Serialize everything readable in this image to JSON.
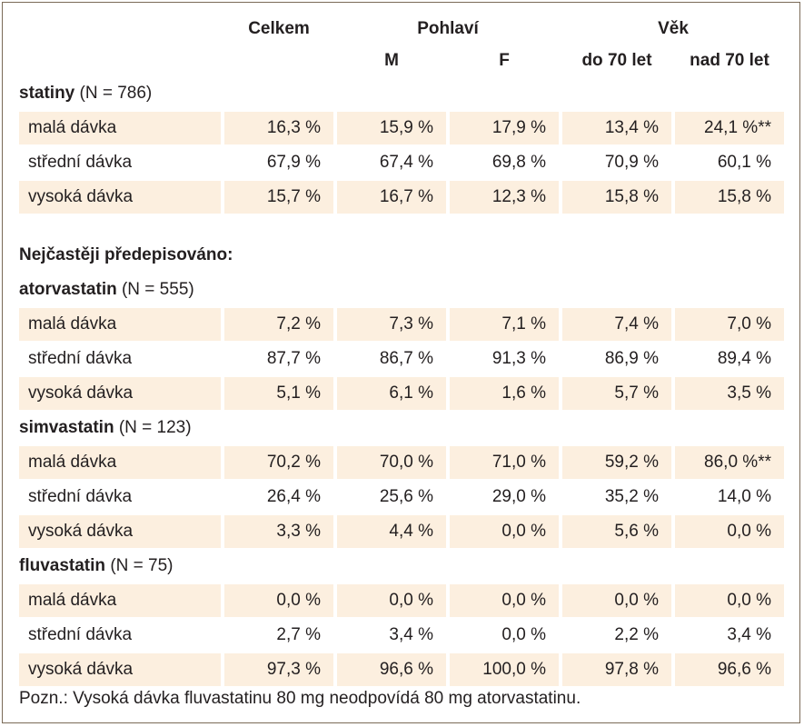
{
  "header": {
    "celkem": "Celkem",
    "pohlavi": "Pohlaví",
    "vek": "Věk",
    "m": "M",
    "f": "F",
    "do70": "do 70 let",
    "nad70": "nad 70 let"
  },
  "section_heading": "Nejčastěji předepisováno:",
  "groups": {
    "statiny": {
      "name": "statiny",
      "n": "(N = 786)",
      "rows": [
        {
          "label": "malá dávka",
          "values": [
            "16,3 %",
            "15,9 %",
            "17,9 %",
            "13,4 %",
            "24,1 %**"
          ]
        },
        {
          "label": "střední dávka",
          "values": [
            "67,9 %",
            "67,4 %",
            "69,8 %",
            "70,9 %",
            "60,1 %"
          ]
        },
        {
          "label": "vysoká dávka",
          "values": [
            "15,7 %",
            "16,7 %",
            "12,3 %",
            "15,8 %",
            "15,8 %"
          ]
        }
      ]
    },
    "atorvastatin": {
      "name": "atorvastatin",
      "n": "(N = 555)",
      "rows": [
        {
          "label": "malá dávka",
          "values": [
            "7,2 %",
            "7,3 %",
            "7,1 %",
            "7,4 %",
            "7,0 %"
          ]
        },
        {
          "label": "střední dávka",
          "values": [
            "87,7 %",
            "86,7 %",
            "91,3 %",
            "86,9 %",
            "89,4 %"
          ]
        },
        {
          "label": "vysoká dávka",
          "values": [
            "5,1 %",
            "6,1 %",
            "1,6 %",
            "5,7 %",
            "3,5 %"
          ]
        }
      ]
    },
    "simvastatin": {
      "name": "simvastatin",
      "n": "(N = 123)",
      "rows": [
        {
          "label": "malá dávka",
          "values": [
            "70,2 %",
            "70,0 %",
            "71,0 %",
            "59,2 %",
            "86,0 %**"
          ]
        },
        {
          "label": "střední dávka",
          "values": [
            "26,4 %",
            "25,6 %",
            "29,0 %",
            "35,2 %",
            "14,0 %"
          ]
        },
        {
          "label": "vysoká dávka",
          "values": [
            "3,3 %",
            "4,4 %",
            "0,0 %",
            "5,6 %",
            "0,0 %"
          ]
        }
      ]
    },
    "fluvastatin": {
      "name": "fluvastatin",
      "n": "(N = 75)",
      "rows": [
        {
          "label": "malá dávka",
          "values": [
            "0,0 %",
            "0,0 %",
            "0,0 %",
            "0,0 %",
            "0,0 %"
          ]
        },
        {
          "label": "střední dávka",
          "values": [
            "2,7 %",
            "3,4 %",
            "0,0 %",
            "2,2 %",
            "3,4 %"
          ]
        },
        {
          "label": "vysoká dávka",
          "values": [
            "97,3 %",
            "96,6 %",
            "100,0 %",
            "97,8 %",
            "96,6 %"
          ]
        }
      ]
    }
  },
  "note": "Pozn.: Vysoká dávka fluvastatinu 80 mg neodpovídá 80 mg atorvastatinu.",
  "colors": {
    "row_shade": "#fcefdf",
    "border": "#7a6a57",
    "text": "#231f20"
  }
}
